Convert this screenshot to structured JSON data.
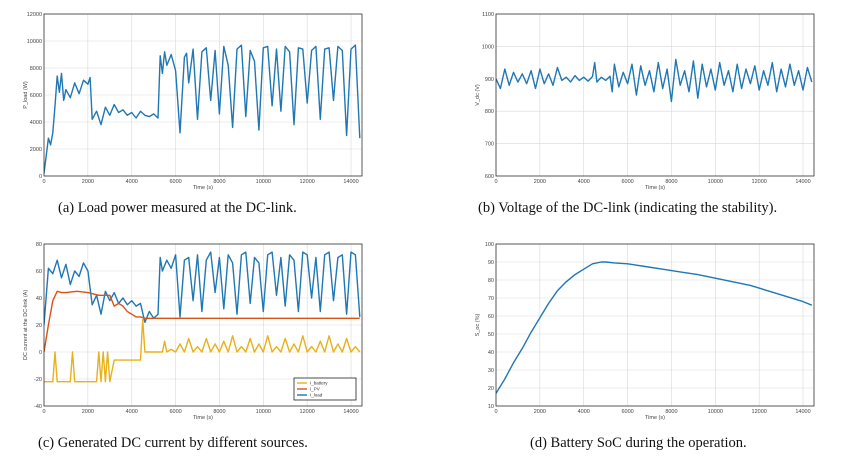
{
  "colors": {
    "blue": "#1f77b4",
    "orange": "#d95319",
    "yellow": "#e8b118",
    "grid": "#d9d9d9",
    "axis": "#333333"
  },
  "captions": {
    "a": "(a) Load power measured at the DC-link.",
    "b": "(b) Voltage of the DC-link (indicating the stability).",
    "c": "(c) Generated DC current by different sources.",
    "d": "(d) Battery SoC during the operation."
  },
  "chart_data": [
    {
      "id": "a",
      "type": "line",
      "xlabel": "Time (s)",
      "ylabel": "P_load (W)",
      "xlim": [
        0,
        14500
      ],
      "ylim": [
        0,
        12000
      ],
      "xticks": [
        0,
        2000,
        4000,
        6000,
        8000,
        10000,
        12000,
        14000
      ],
      "yticks": [
        0,
        2000,
        4000,
        6000,
        8000,
        10000,
        12000
      ],
      "series": [
        {
          "color": "blue",
          "x": [
            0,
            100,
            200,
            300,
            400,
            500,
            600,
            700,
            800,
            900,
            1000,
            1200,
            1400,
            1600,
            1800,
            2000,
            2100,
            2200,
            2400,
            2600,
            2800,
            3000,
            3200,
            3400,
            3600,
            3800,
            4000,
            4200,
            4400,
            4600,
            4800,
            5000,
            5200,
            5300,
            5400,
            5500,
            5600,
            5800,
            6000,
            6200,
            6400,
            6500,
            6600,
            6800,
            7000,
            7200,
            7400,
            7600,
            7800,
            8000,
            8200,
            8400,
            8600,
            8800,
            9000,
            9200,
            9400,
            9600,
            9800,
            10000,
            10200,
            10400,
            10600,
            10800,
            11000,
            11200,
            11400,
            11600,
            11800,
            12000,
            12200,
            12400,
            12600,
            12800,
            13000,
            13200,
            13400,
            13600,
            13800,
            14000,
            14200,
            14400
          ],
          "y": [
            200,
            1500,
            2800,
            2300,
            3200,
            5200,
            7400,
            6200,
            7600,
            5600,
            6400,
            5800,
            6900,
            6100,
            7100,
            6800,
            7300,
            4200,
            4800,
            3800,
            5100,
            4500,
            5300,
            4700,
            4900,
            4500,
            4700,
            4300,
            4800,
            4500,
            4400,
            4600,
            4300,
            8900,
            7600,
            9200,
            8200,
            9000,
            7800,
            3200,
            8800,
            9100,
            6900,
            9400,
            4200,
            9200,
            9500,
            5600,
            9300,
            4600,
            9600,
            8200,
            3600,
            9400,
            9700,
            4400,
            9300,
            8500,
            3400,
            9500,
            9600,
            5200,
            9400,
            4800,
            9600,
            9200,
            3800,
            9500,
            9400,
            5400,
            9300,
            9600,
            4200,
            9400,
            9500,
            5600,
            9600,
            9300,
            3000,
            9400,
            9700,
            2800
          ]
        }
      ]
    },
    {
      "id": "b",
      "type": "line",
      "xlabel": "Time (s)",
      "ylabel": "V_dc (V)",
      "xlim": [
        0,
        14500
      ],
      "ylim": [
        600,
        1100
      ],
      "xticks": [
        0,
        2000,
        4000,
        6000,
        8000,
        10000,
        12000,
        14000
      ],
      "yticks": [
        600,
        700,
        800,
        900,
        1000,
        1100
      ],
      "series": [
        {
          "color": "blue",
          "x": [
            0,
            200,
            400,
            600,
            800,
            1000,
            1200,
            1400,
            1600,
            1800,
            2000,
            2200,
            2400,
            2600,
            2800,
            3000,
            3200,
            3400,
            3600,
            3800,
            4000,
            4200,
            4400,
            4500,
            4600,
            4800,
            5000,
            5200,
            5300,
            5400,
            5600,
            5800,
            6000,
            6200,
            6400,
            6600,
            6800,
            7000,
            7200,
            7400,
            7600,
            7800,
            8000,
            8200,
            8400,
            8600,
            8800,
            9000,
            9200,
            9400,
            9600,
            9800,
            10000,
            10200,
            10400,
            10600,
            10800,
            11000,
            11200,
            11400,
            11600,
            11800,
            12000,
            12200,
            12400,
            12600,
            12800,
            13000,
            13200,
            13400,
            13600,
            13800,
            14000,
            14200,
            14400
          ],
          "y": [
            900,
            870,
            930,
            880,
            920,
            890,
            915,
            885,
            925,
            870,
            930,
            885,
            915,
            880,
            935,
            895,
            905,
            890,
            910,
            895,
            905,
            893,
            907,
            950,
            890,
            905,
            895,
            908,
            860,
            945,
            875,
            920,
            885,
            945,
            850,
            940,
            880,
            925,
            860,
            950,
            870,
            930,
            830,
            960,
            880,
            925,
            860,
            955,
            840,
            945,
            875,
            930,
            865,
            950,
            880,
            925,
            860,
            945,
            870,
            930,
            885,
            940,
            865,
            925,
            880,
            950,
            860,
            930,
            875,
            945,
            880,
            925,
            865,
            935,
            890
          ]
        }
      ]
    },
    {
      "id": "c",
      "type": "line",
      "xlabel": "Time (s)",
      "ylabel": "DC current at the DC-link (A)",
      "xlim": [
        0,
        14500
      ],
      "ylim": [
        -40,
        80
      ],
      "xticks": [
        0,
        2000,
        4000,
        6000,
        8000,
        10000,
        12000,
        14000
      ],
      "yticks": [
        -40,
        -20,
        0,
        20,
        40,
        60,
        80
      ],
      "legend": {
        "placement": "bottom-right",
        "entries": [
          "I_battery",
          "I_PV",
          "I_load"
        ]
      },
      "series": [
        {
          "name": "I_load",
          "color": "blue",
          "x": [
            0,
            200,
            400,
            600,
            800,
            1000,
            1200,
            1400,
            1600,
            1800,
            2000,
            2200,
            2400,
            2600,
            2800,
            3000,
            3200,
            3400,
            3600,
            3800,
            4000,
            4200,
            4400,
            4600,
            4800,
            5000,
            5200,
            5300,
            5400,
            5600,
            5800,
            6000,
            6200,
            6400,
            6600,
            6800,
            7000,
            7200,
            7400,
            7600,
            7800,
            8000,
            8200,
            8400,
            8600,
            8800,
            9000,
            9200,
            9400,
            9600,
            9800,
            10000,
            10200,
            10400,
            10600,
            10800,
            11000,
            11200,
            11400,
            11600,
            11800,
            12000,
            12200,
            12400,
            12600,
            12800,
            13000,
            13200,
            13400,
            13600,
            13800,
            14000,
            14200,
            14400
          ],
          "y": [
            20,
            62,
            58,
            68,
            55,
            65,
            50,
            60,
            56,
            66,
            60,
            35,
            42,
            28,
            45,
            38,
            44,
            36,
            40,
            35,
            38,
            34,
            36,
            22,
            30,
            25,
            28,
            70,
            60,
            68,
            62,
            72,
            26,
            68,
            70,
            38,
            72,
            30,
            68,
            74,
            44,
            70,
            32,
            72,
            66,
            28,
            72,
            74,
            36,
            70,
            66,
            30,
            72,
            74,
            42,
            70,
            34,
            72,
            68,
            30,
            74,
            72,
            40,
            70,
            30,
            72,
            74,
            38,
            70,
            72,
            28,
            74,
            72,
            26
          ]
        },
        {
          "name": "I_PV",
          "color": "orange",
          "x": [
            0,
            200,
            400,
            600,
            800,
            1000,
            1500,
            2000,
            2500,
            3000,
            3200,
            3400,
            3600,
            3800,
            4000,
            4200,
            4400,
            4600,
            5000,
            6000,
            8000,
            10000,
            12000,
            14000,
            14400
          ],
          "y": [
            0,
            20,
            38,
            45,
            44,
            44,
            45,
            44,
            42,
            42,
            34,
            36,
            34,
            30,
            28,
            26,
            26,
            25,
            25,
            25,
            25,
            25,
            25,
            25,
            25
          ]
        },
        {
          "name": "I_battery",
          "color": "yellow",
          "x": [
            0,
            200,
            400,
            500,
            600,
            700,
            800,
            1000,
            1200,
            1300,
            1400,
            1500,
            1600,
            1800,
            2000,
            2200,
            2400,
            2500,
            2600,
            2700,
            2800,
            2900,
            3000,
            3200,
            3500,
            4000,
            4400,
            4500,
            4600,
            5000,
            5400,
            5500,
            5600,
            5800,
            6000,
            6200,
            6400,
            6600,
            6800,
            7000,
            7200,
            7400,
            7600,
            7800,
            8000,
            8200,
            8400,
            8600,
            8800,
            9000,
            9200,
            9400,
            9600,
            9800,
            10000,
            10200,
            10400,
            10600,
            10800,
            11000,
            11200,
            11400,
            11600,
            11800,
            12000,
            12200,
            12400,
            12600,
            12800,
            13000,
            13200,
            13400,
            13600,
            13800,
            14000,
            14200,
            14400
          ],
          "y": [
            -22,
            -22,
            -22,
            0,
            -22,
            -22,
            -22,
            -22,
            -22,
            0,
            -22,
            -22,
            -22,
            -22,
            -22,
            -22,
            -22,
            0,
            -22,
            0,
            -22,
            0,
            -22,
            -6,
            -6,
            -6,
            -6,
            24,
            0,
            0,
            0,
            8,
            0,
            2,
            0,
            6,
            0,
            10,
            0,
            4,
            0,
            10,
            0,
            6,
            0,
            8,
            0,
            12,
            0,
            4,
            0,
            10,
            0,
            6,
            0,
            12,
            0,
            4,
            0,
            10,
            0,
            6,
            0,
            12,
            0,
            4,
            0,
            8,
            0,
            12,
            0,
            6,
            0,
            10,
            0,
            4,
            0
          ]
        }
      ]
    },
    {
      "id": "d",
      "type": "line",
      "xlabel": "Time (s)",
      "ylabel": "S_oc (%)",
      "xlim": [
        0,
        14500
      ],
      "ylim": [
        10,
        100
      ],
      "xticks": [
        0,
        2000,
        4000,
        6000,
        8000,
        10000,
        12000,
        14000
      ],
      "yticks": [
        10,
        20,
        30,
        40,
        50,
        60,
        70,
        80,
        90,
        100
      ],
      "series": [
        {
          "color": "blue",
          "x": [
            0,
            400,
            800,
            1200,
            1600,
            2000,
            2400,
            2800,
            3200,
            3600,
            4000,
            4400,
            4800,
            5000,
            5400,
            6000,
            6800,
            7600,
            8400,
            9200,
            10000,
            10800,
            11600,
            12400,
            13200,
            14000,
            14400
          ],
          "y": [
            17,
            25,
            34,
            42,
            51,
            59,
            67,
            74,
            79,
            83,
            86,
            89,
            90,
            90,
            89.5,
            89,
            87.5,
            86,
            84.5,
            83,
            81,
            79,
            77,
            74,
            71,
            68,
            66
          ]
        }
      ]
    }
  ]
}
